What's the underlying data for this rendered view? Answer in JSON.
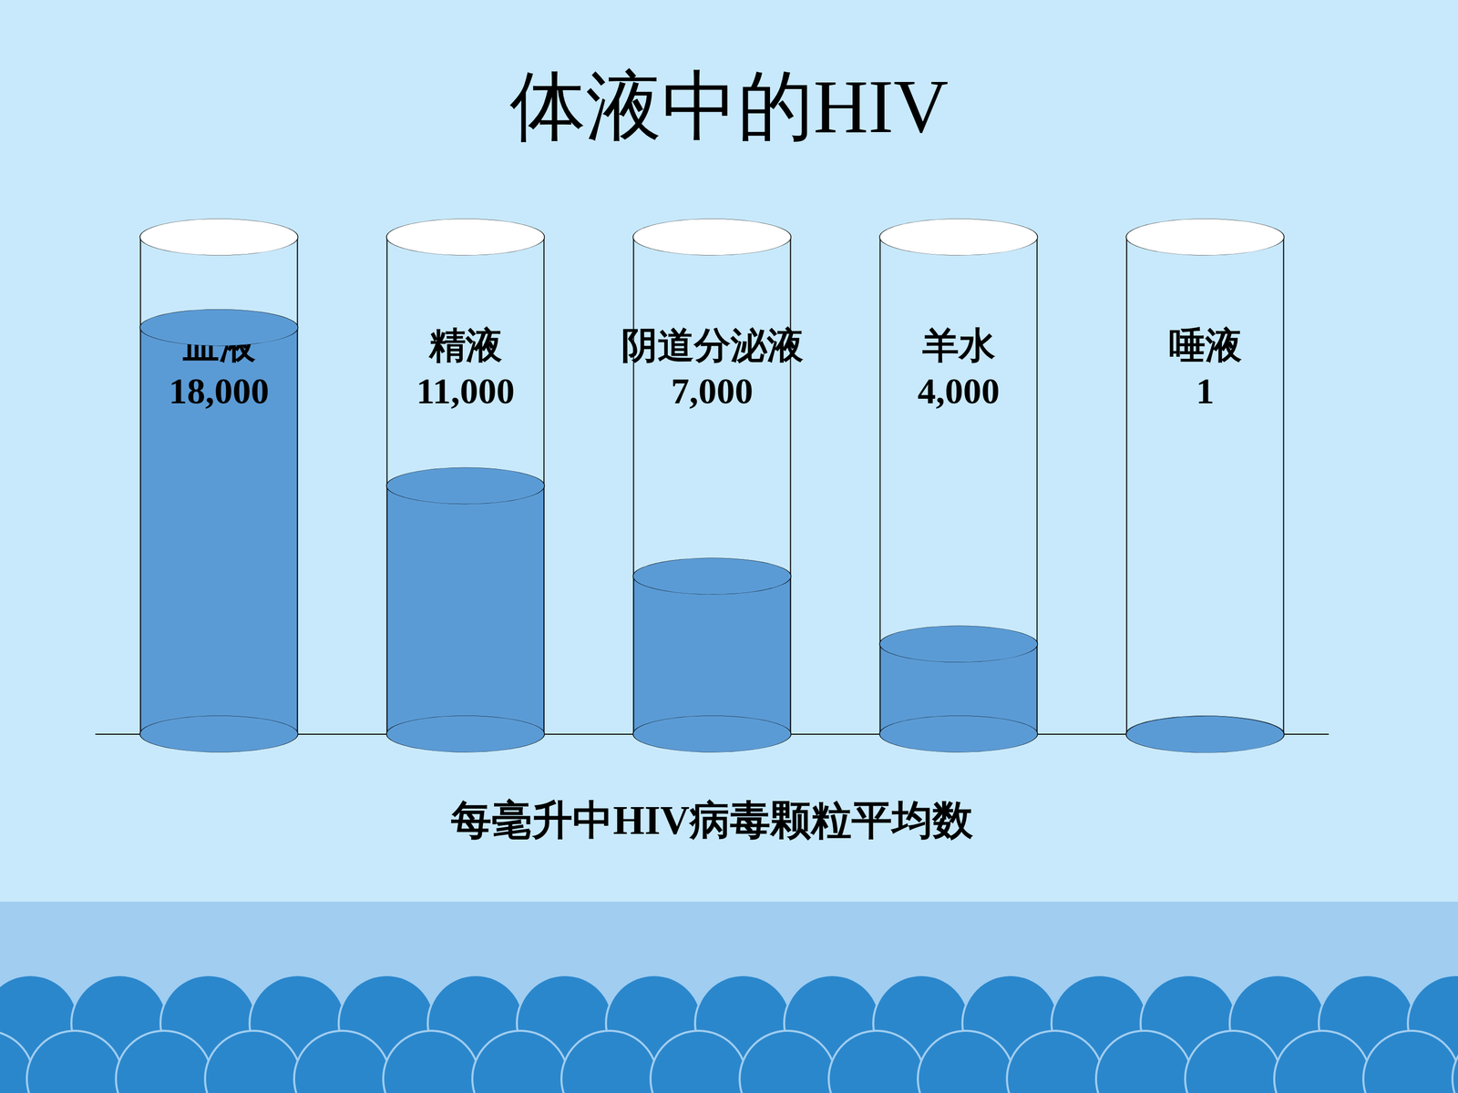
{
  "chart_data": {
    "type": "bar",
    "title": "体液中的HIV",
    "xlabel": "每毫升中HIV病毒颗粒平均数",
    "categories": [
      "血液",
      "精液",
      "阴道分泌液",
      "羊水",
      "唾液"
    ],
    "values": [
      18000,
      11000,
      7000,
      4000,
      1
    ],
    "value_labels": [
      "18,000",
      "11,000",
      "7,000",
      "4,000",
      "1"
    ],
    "color": "#5b9bd5",
    "ylim": [
      0,
      22000
    ],
    "data_labels": true,
    "tick_labels": false,
    "grid": false
  }
}
